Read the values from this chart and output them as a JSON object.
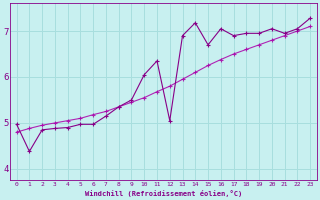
{
  "xlabel": "Windchill (Refroidissement éolien,°C)",
  "background_color": "#c8f0f0",
  "grid_color": "#a8dede",
  "line_color": "#880088",
  "line_color2": "#aa00aa",
  "xlim": [
    -0.5,
    23.5
  ],
  "ylim": [
    3.75,
    7.6
  ],
  "xticks": [
    0,
    1,
    2,
    3,
    4,
    5,
    6,
    7,
    8,
    9,
    10,
    11,
    12,
    13,
    14,
    15,
    16,
    17,
    18,
    19,
    20,
    21,
    22,
    23
  ],
  "yticks": [
    4,
    5,
    6,
    7
  ],
  "series1_x": [
    0,
    1,
    2,
    3,
    4,
    5,
    6,
    7,
    8,
    9,
    10,
    11,
    12,
    13,
    14,
    15,
    16,
    17,
    18,
    19,
    20,
    21,
    22,
    23
  ],
  "series1_y": [
    4.97,
    4.38,
    4.85,
    4.88,
    4.9,
    4.97,
    4.97,
    5.15,
    5.35,
    5.5,
    6.05,
    6.35,
    5.05,
    6.9,
    7.18,
    6.7,
    7.05,
    6.9,
    6.95,
    6.95,
    7.05,
    6.95,
    7.05,
    7.28
  ],
  "series2_x": [
    0,
    1,
    2,
    3,
    4,
    5,
    6,
    7,
    8,
    9,
    10,
    11,
    12,
    13,
    14,
    15,
    16,
    17,
    18,
    19,
    20,
    21,
    22,
    23
  ],
  "series2_y": [
    4.8,
    4.88,
    4.95,
    5.0,
    5.05,
    5.1,
    5.18,
    5.25,
    5.35,
    5.45,
    5.55,
    5.68,
    5.8,
    5.95,
    6.1,
    6.25,
    6.38,
    6.5,
    6.6,
    6.7,
    6.8,
    6.9,
    7.0,
    7.1
  ]
}
